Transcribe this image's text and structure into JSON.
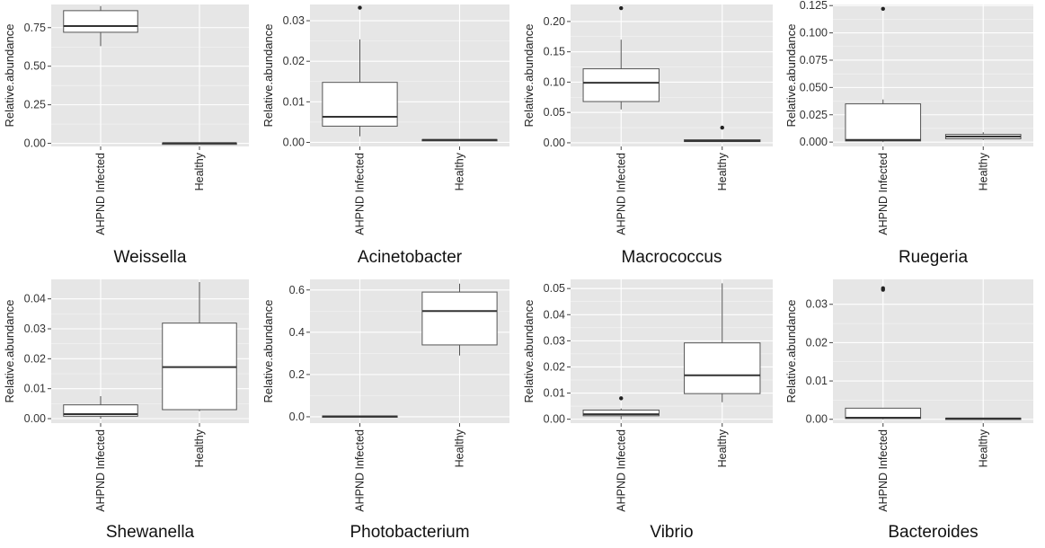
{
  "chart_data": [
    {
      "type": "box",
      "title": "Weissella",
      "ylabel": "Relative.abundance",
      "ylim": [
        -0.02,
        0.9
      ],
      "yticks": [
        0.0,
        0.25,
        0.5,
        0.75
      ],
      "ytick_labels": [
        "0.00",
        "0.25",
        "0.50",
        "0.75"
      ],
      "categories": [
        "AHPND Infected",
        "Healthy"
      ],
      "boxes": [
        {
          "category": "AHPND Infected",
          "whisker_low": 0.63,
          "q1": 0.72,
          "median": 0.76,
          "q3": 0.86,
          "whisker_high": 0.89,
          "outliers": []
        },
        {
          "category": "Healthy",
          "whisker_low": 0.0,
          "q1": 0.0,
          "median": 0.001,
          "q3": 0.002,
          "whisker_high": 0.002,
          "outliers": []
        }
      ],
      "grid": true
    },
    {
      "type": "box",
      "title": "Acinetobacter",
      "ylabel": "Relative.abundance",
      "ylim": [
        -0.001,
        0.034
      ],
      "yticks": [
        0.0,
        0.01,
        0.02,
        0.03
      ],
      "ytick_labels": [
        "0.00",
        "0.01",
        "0.02",
        "0.03"
      ],
      "categories": [
        "AHPND Infected",
        "Healthy"
      ],
      "boxes": [
        {
          "category": "AHPND Infected",
          "whisker_low": 0.0015,
          "q1": 0.004,
          "median": 0.0063,
          "q3": 0.0148,
          "whisker_high": 0.0254,
          "outliers": [
            0.0332
          ]
        },
        {
          "category": "Healthy",
          "whisker_low": 0.0005,
          "q1": 0.0005,
          "median": 0.0006,
          "q3": 0.0007,
          "whisker_high": 0.0007,
          "outliers": []
        }
      ],
      "grid": true
    },
    {
      "type": "box",
      "title": "Macrococcus",
      "ylabel": "Relative.abundance",
      "ylim": [
        -0.006,
        0.228
      ],
      "yticks": [
        0.0,
        0.05,
        0.1,
        0.15,
        0.2
      ],
      "ytick_labels": [
        "0.00",
        "0.05",
        "0.10",
        "0.15",
        "0.20"
      ],
      "categories": [
        "AHPND Infected",
        "Healthy"
      ],
      "boxes": [
        {
          "category": "AHPND Infected",
          "whisker_low": 0.055,
          "q1": 0.068,
          "median": 0.099,
          "q3": 0.122,
          "whisker_high": 0.17,
          "outliers": [
            0.222
          ]
        },
        {
          "category": "Healthy",
          "whisker_low": 0.001,
          "q1": 0.002,
          "median": 0.003,
          "q3": 0.005,
          "whisker_high": 0.006,
          "outliers": [
            0.025
          ]
        }
      ],
      "grid": true
    },
    {
      "type": "box",
      "title": "Ruegeria",
      "ylabel": "Relative.abundance",
      "ylim": [
        -0.004,
        0.126
      ],
      "yticks": [
        0.0,
        0.025,
        0.05,
        0.075,
        0.1,
        0.125
      ],
      "ytick_labels": [
        "0.000",
        "0.025",
        "0.050",
        "0.075",
        "0.100",
        "0.125"
      ],
      "categories": [
        "AHPND Infected",
        "Healthy"
      ],
      "boxes": [
        {
          "category": "AHPND Infected",
          "whisker_low": 0.0,
          "q1": 0.001,
          "median": 0.002,
          "q3": 0.035,
          "whisker_high": 0.039,
          "outliers": [
            0.122
          ]
        },
        {
          "category": "Healthy",
          "whisker_low": 0.002,
          "q1": 0.003,
          "median": 0.005,
          "q3": 0.007,
          "whisker_high": 0.009,
          "outliers": []
        }
      ],
      "grid": true
    },
    {
      "type": "box",
      "title": "Shewanella",
      "ylabel": "Relative.abundance",
      "ylim": [
        -0.0015,
        0.0465
      ],
      "yticks": [
        0.0,
        0.01,
        0.02,
        0.03,
        0.04
      ],
      "ytick_labels": [
        "0.00",
        "0.01",
        "0.02",
        "0.03",
        "0.04"
      ],
      "categories": [
        "AHPND Infected",
        "Healthy"
      ],
      "boxes": [
        {
          "category": "AHPND Infected",
          "whisker_low": 0.0,
          "q1": 0.0008,
          "median": 0.0015,
          "q3": 0.0046,
          "whisker_high": 0.0075,
          "outliers": []
        },
        {
          "category": "Healthy",
          "whisker_low": 0.0025,
          "q1": 0.003,
          "median": 0.0172,
          "q3": 0.0319,
          "whisker_high": 0.0456,
          "outliers": []
        }
      ],
      "grid": true
    },
    {
      "type": "box",
      "title": "Photobacterium",
      "ylabel": "Relative.abundance",
      "ylim": [
        -0.03,
        0.65
      ],
      "yticks": [
        0.0,
        0.2,
        0.4,
        0.6
      ],
      "ytick_labels": [
        "0.0",
        "0.2",
        "0.4",
        "0.6"
      ],
      "categories": [
        "AHPND Infected",
        "Healthy"
      ],
      "boxes": [
        {
          "category": "AHPND Infected",
          "whisker_low": 0.0,
          "q1": 0.0,
          "median": 0.002,
          "q3": 0.004,
          "whisker_high": 0.004,
          "outliers": []
        },
        {
          "category": "Healthy",
          "whisker_low": 0.29,
          "q1": 0.34,
          "median": 0.5,
          "q3": 0.59,
          "whisker_high": 0.63,
          "outliers": []
        }
      ],
      "grid": true
    },
    {
      "type": "box",
      "title": "Vibrio",
      "ylabel": "Relative.abundance",
      "ylim": [
        -0.0015,
        0.0535
      ],
      "yticks": [
        0.0,
        0.01,
        0.02,
        0.03,
        0.04,
        0.05
      ],
      "ytick_labels": [
        "0.00",
        "0.01",
        "0.02",
        "0.03",
        "0.04",
        "0.05"
      ],
      "categories": [
        "AHPND Infected",
        "Healthy"
      ],
      "boxes": [
        {
          "category": "AHPND Infected",
          "whisker_low": 0.0,
          "q1": 0.0013,
          "median": 0.0019,
          "q3": 0.0035,
          "whisker_high": 0.0041,
          "outliers": [
            0.008
          ]
        },
        {
          "category": "Healthy",
          "whisker_low": 0.0065,
          "q1": 0.0098,
          "median": 0.0168,
          "q3": 0.0292,
          "whisker_high": 0.052,
          "outliers": []
        }
      ],
      "grid": true
    },
    {
      "type": "box",
      "title": "Bacteroides",
      "ylabel": "Relative.abundance",
      "ylim": [
        -0.001,
        0.0365
      ],
      "yticks": [
        0.0,
        0.01,
        0.02,
        0.03
      ],
      "ytick_labels": [
        "0.00",
        "0.01",
        "0.02",
        "0.03"
      ],
      "categories": [
        "AHPND Infected",
        "Healthy"
      ],
      "boxes": [
        {
          "category": "AHPND Infected",
          "whisker_low": 0.0,
          "q1": 0.0002,
          "median": 0.0004,
          "q3": 0.0029,
          "whisker_high": 0.0029,
          "outliers": [
            0.0338,
            0.0342
          ]
        },
        {
          "category": "Healthy",
          "whisker_low": 0.0001,
          "q1": 0.0001,
          "median": 0.0002,
          "q3": 0.0003,
          "whisker_high": 0.0003,
          "outliers": []
        }
      ],
      "grid": true
    }
  ],
  "colors": {
    "panel_background": "#e6e6e6",
    "grid": "#ffffff",
    "box_fill": "#ffffff",
    "box_stroke": "#555555",
    "median": "#333333",
    "outlier": "#222222",
    "text": "#222222"
  }
}
